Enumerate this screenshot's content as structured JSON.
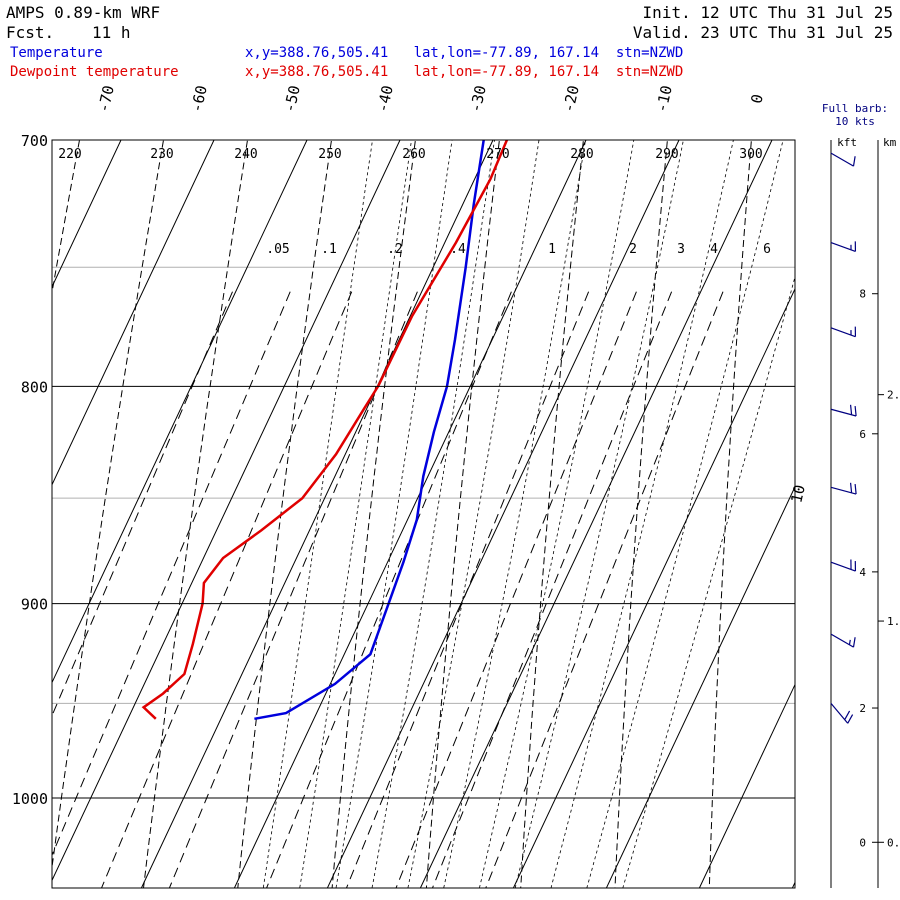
{
  "header": {
    "model": "AMPS 0.89-km WRF",
    "fcst_label": "Fcst.",
    "fcst_value": "11 h",
    "init_text": "Init. 12 UTC Thu 31 Jul 25",
    "valid_text": "Valid. 23 UTC Thu 31 Jul 25"
  },
  "legend": [
    {
      "label": "Temperature",
      "info": "x,y=388.76,505.41   lat,lon=-77.89, 167.14  stn=NZWD",
      "color": "#0000dd"
    },
    {
      "label": "Dewpoint temperature",
      "info": "x,y=388.76,505.41   lat,lon=-77.89, 167.14  stn=NZWD",
      "color": "#e00000"
    }
  ],
  "barb_note": {
    "line1": "Full barb:",
    "line2": "10 kts"
  },
  "height_axis": {
    "kft_label": "kft",
    "km_label": "km",
    "kft_ticks": [
      {
        "value": 0,
        "label": "0"
      },
      {
        "value": 2,
        "label": "2"
      },
      {
        "value": 4,
        "label": "4"
      },
      {
        "value": 6,
        "label": "6"
      },
      {
        "value": 8,
        "label": "8"
      }
    ],
    "km_ticks": [
      {
        "value": 0,
        "label": "0."
      },
      {
        "value": 1,
        "label": "1."
      },
      {
        "value": 2,
        "label": "2."
      }
    ]
  },
  "chart_data": {
    "type": "line",
    "chart_kind": "skew-T log-p",
    "y_scale": "log",
    "ylim": [
      1040,
      700
    ],
    "pressure_labels": [
      "700",
      "800",
      "900",
      "1000"
    ],
    "pressure_levels": [
      700,
      800,
      900,
      1000
    ],
    "pressure_gridlines_gray": [
      750,
      850,
      950
    ],
    "isotherm_labels": [
      {
        "value": -70,
        "label": "-70"
      },
      {
        "value": -60,
        "label": "-60"
      },
      {
        "value": -50,
        "label": "-50"
      },
      {
        "value": -40,
        "label": "-40"
      },
      {
        "value": -30,
        "label": "-30"
      },
      {
        "value": -20,
        "label": "-20"
      },
      {
        "value": -10,
        "label": "-10"
      },
      {
        "value": 0,
        "label": "0"
      },
      {
        "value": 10,
        "label": "10"
      }
    ],
    "theta_labels": [
      "220",
      "230",
      "240",
      "250",
      "260",
      "270",
      "280",
      "290",
      "300"
    ],
    "mixing_ratio_labels": [
      ".05",
      ".1",
      ".2",
      ".4",
      "1",
      "2",
      "3",
      "4",
      "6"
    ],
    "series": [
      {
        "name": "Temperature",
        "color": "#0000dd",
        "points": [
          {
            "p": 958,
            "t": -26.4
          },
          {
            "p": 955,
            "t": -23.3
          },
          {
            "p": 940,
            "t": -19.5
          },
          {
            "p": 925,
            "t": -17.2
          },
          {
            "p": 900,
            "t": -17.8
          },
          {
            "p": 880,
            "t": -18.3
          },
          {
            "p": 860,
            "t": -19.0
          },
          {
            "p": 840,
            "t": -20.5
          },
          {
            "p": 820,
            "t": -21.6
          },
          {
            "p": 800,
            "t": -22.5
          },
          {
            "p": 780,
            "t": -24.0
          },
          {
            "p": 750,
            "t": -26.5
          },
          {
            "p": 725,
            "t": -28.8
          },
          {
            "p": 700,
            "t": -31.0
          }
        ]
      },
      {
        "name": "Dewpoint temperature",
        "color": "#e00000",
        "points": [
          {
            "p": 958,
            "t": -37.0
          },
          {
            "p": 952,
            "t": -38.9
          },
          {
            "p": 945,
            "t": -37.5
          },
          {
            "p": 935,
            "t": -36.2
          },
          {
            "p": 920,
            "t": -36.8
          },
          {
            "p": 900,
            "t": -37.8
          },
          {
            "p": 890,
            "t": -38.7
          },
          {
            "p": 878,
            "t": -37.9
          },
          {
            "p": 865,
            "t": -35.2
          },
          {
            "p": 850,
            "t": -32.4
          },
          {
            "p": 830,
            "t": -31.0
          },
          {
            "p": 810,
            "t": -30.3
          },
          {
            "p": 800,
            "t": -29.9
          },
          {
            "p": 770,
            "t": -29.8
          },
          {
            "p": 740,
            "t": -28.8
          },
          {
            "p": 715,
            "t": -28.3
          },
          {
            "p": 700,
            "t": -28.5
          }
        ]
      }
    ],
    "wind_barbs": [
      {
        "p": 705,
        "direction_deg": 300,
        "speed_kt": 10
      },
      {
        "p": 740,
        "direction_deg": 290,
        "speed_kt": 15
      },
      {
        "p": 775,
        "direction_deg": 290,
        "speed_kt": 15
      },
      {
        "p": 810,
        "direction_deg": 285,
        "speed_kt": 20
      },
      {
        "p": 845,
        "direction_deg": 285,
        "speed_kt": 20
      },
      {
        "p": 880,
        "direction_deg": 290,
        "speed_kt": 20
      },
      {
        "p": 915,
        "direction_deg": 300,
        "speed_kt": 15
      },
      {
        "p": 950,
        "direction_deg": 320,
        "speed_kt": 20
      }
    ],
    "colors": {
      "temperature": "#0000dd",
      "dewpoint": "#e00000",
      "grid": "#000000",
      "gray_grid": "#b0b0b0"
    }
  }
}
